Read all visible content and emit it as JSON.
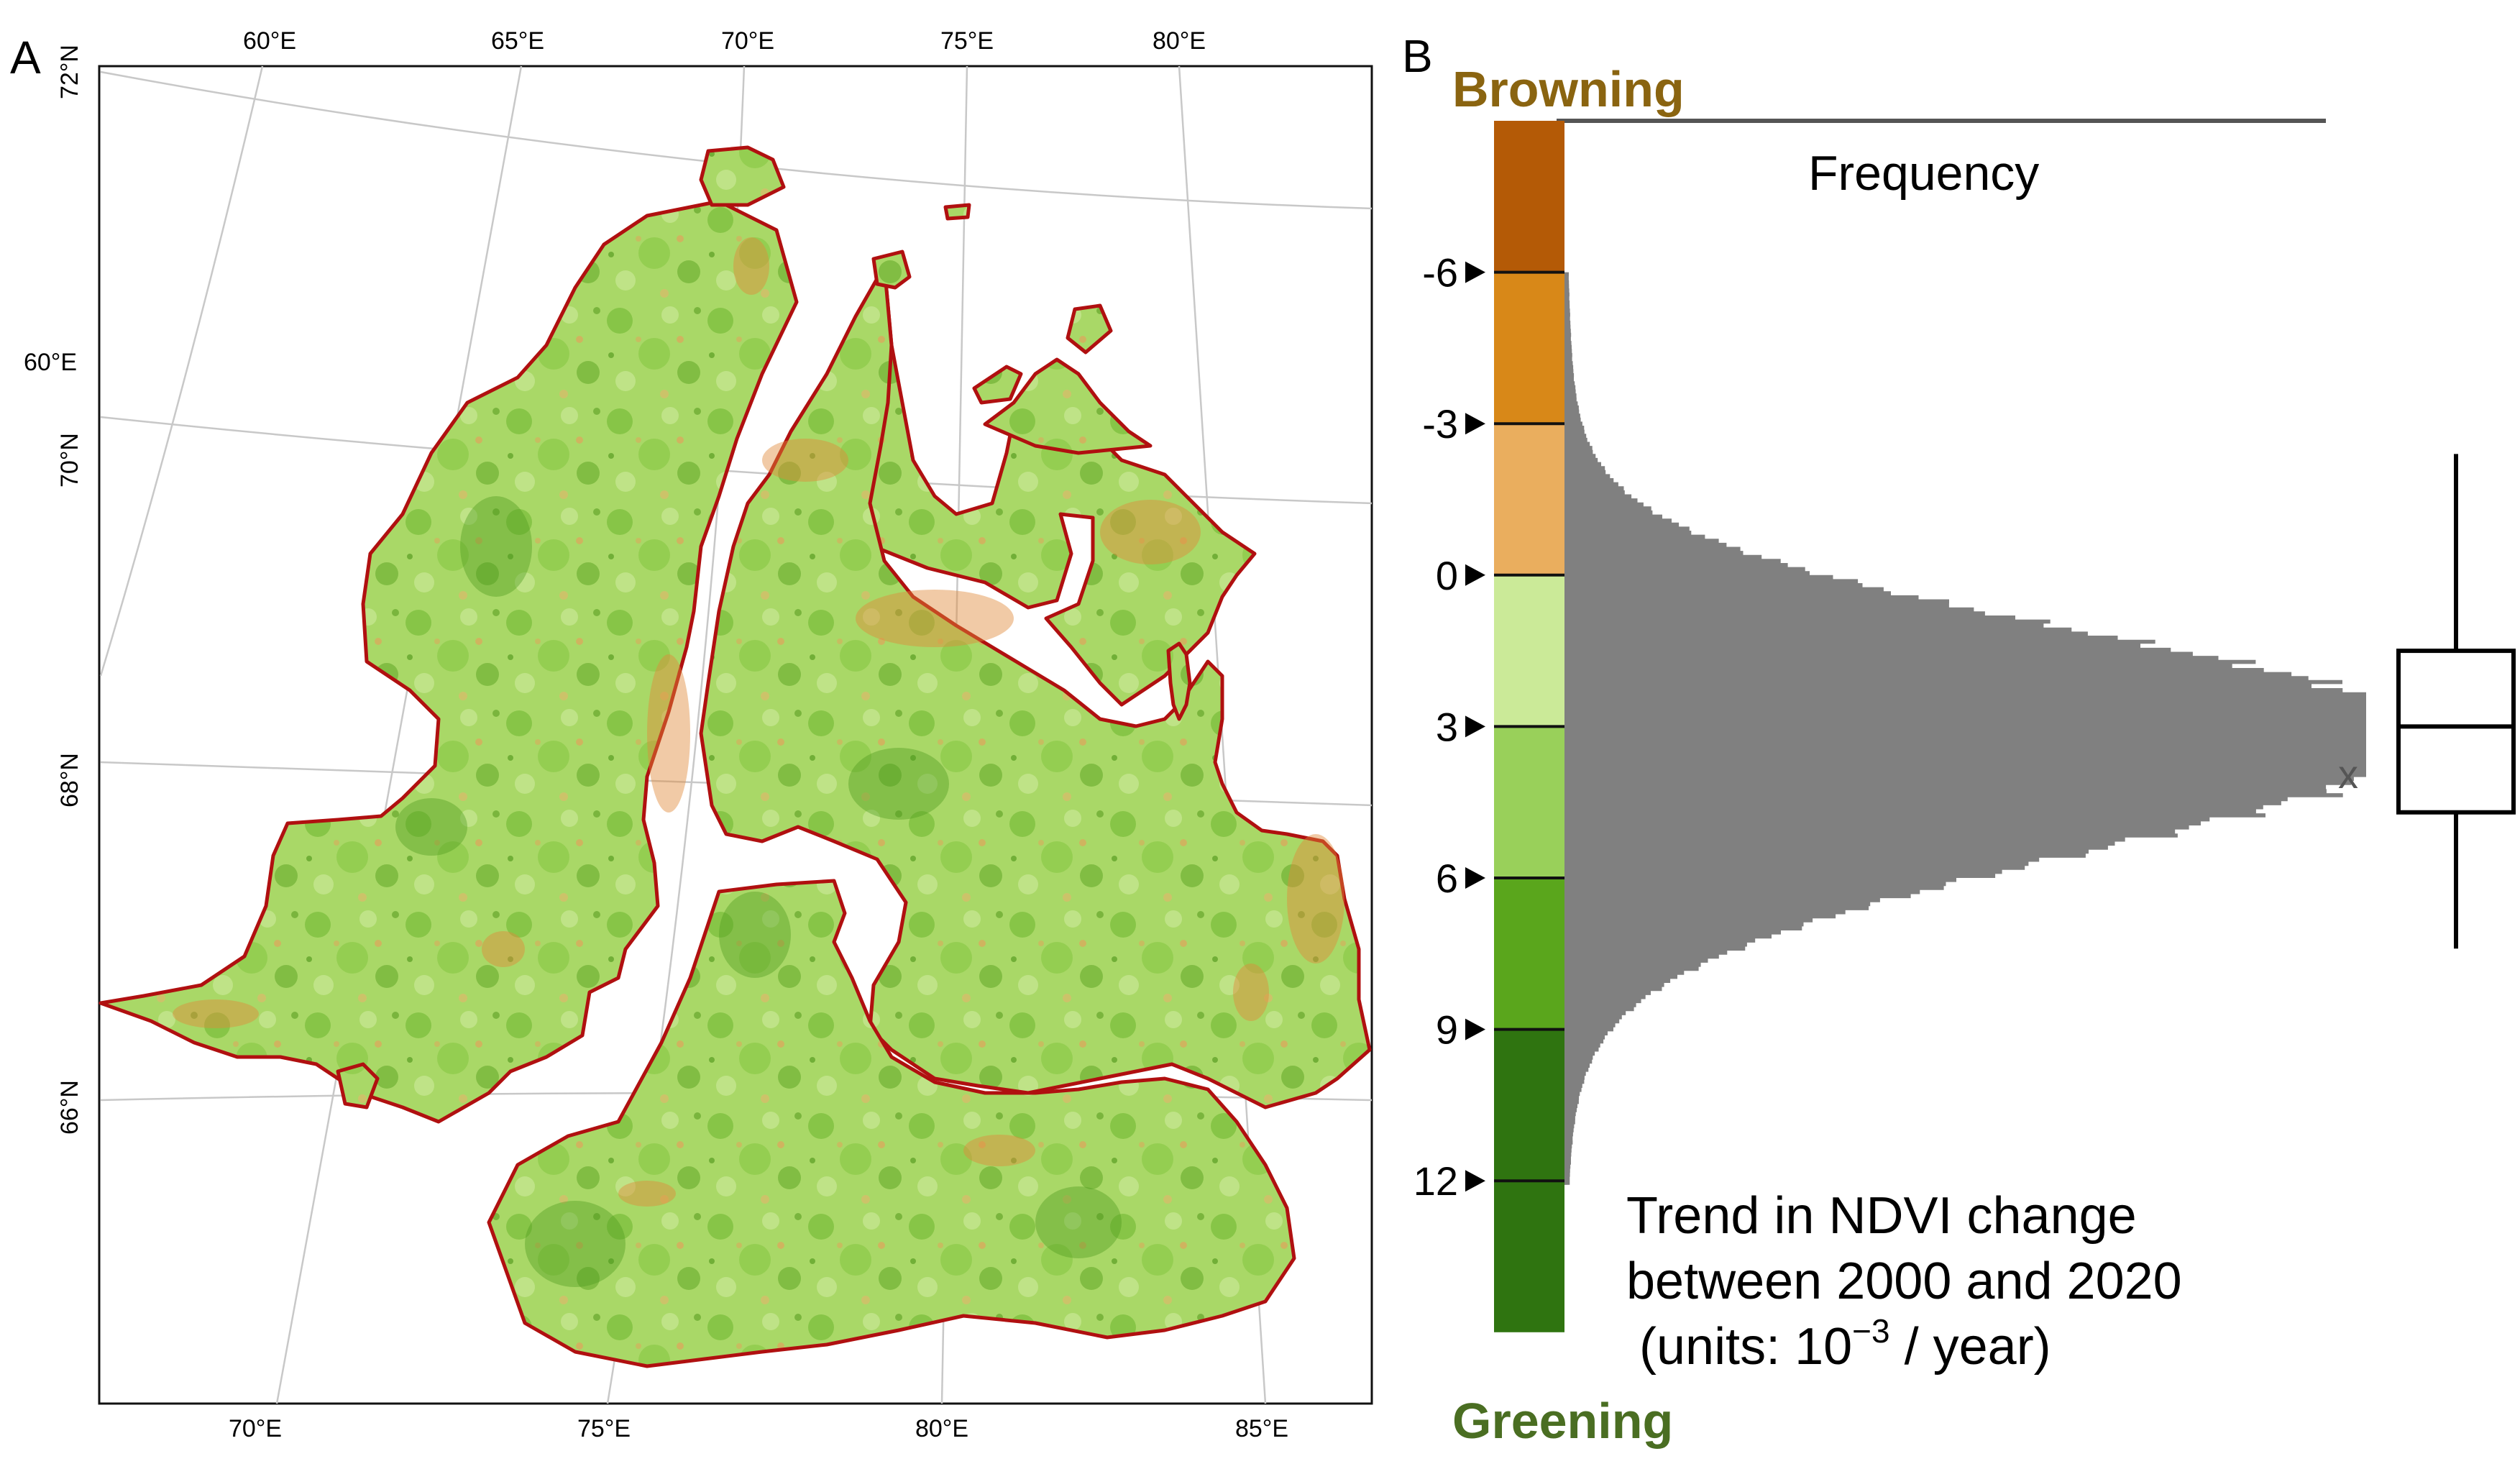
{
  "panel_a": {
    "label": "A",
    "top_lon_labels": [
      "60°E",
      "65°E",
      "70°E",
      "75°E",
      "80°E"
    ],
    "bottom_lon_labels": [
      "70°E",
      "75°E",
      "80°E",
      "85°E"
    ],
    "left_labels": [
      "72°N",
      "60°E",
      "70°N",
      "68°N",
      "66°N"
    ],
    "colors": {
      "boundary": "#b01010",
      "graticule": "#c8c8c8",
      "land_base": "#a9d867",
      "green_dark": "#4e9a1e",
      "green_mid": "#7cbf3c",
      "orange": "#e08a3a"
    }
  },
  "panel_b": {
    "label": "B",
    "top_label": "Browning",
    "bottom_label": "Greening",
    "axis_title": "Frequency",
    "ticks": [
      "-6",
      "-3",
      "0",
      "3",
      "6",
      "9",
      "12"
    ],
    "annotation_line1": "Trend in NDVI change",
    "annotation_line2": "between 2000 and 2020",
    "annotation_units": "(units: 10",
    "annotation_exp": "−3",
    "annotation_tail": " / year)",
    "mean_marker": "x",
    "browning_color": "#8a6410",
    "greening_color": "#4a6e22",
    "histogram_color": "#808080",
    "colorbar": [
      {
        "from": -9,
        "to": -6,
        "color": "#b45a06"
      },
      {
        "from": -6,
        "to": -3,
        "color": "#d88818"
      },
      {
        "from": -3,
        "to": 0,
        "color": "#eaae5e"
      },
      {
        "from": 0,
        "to": 3,
        "color": "#cbea98"
      },
      {
        "from": 3,
        "to": 6,
        "color": "#99d05a"
      },
      {
        "from": 6,
        "to": 9,
        "color": "#5aa61c"
      },
      {
        "from": 9,
        "to": 12,
        "color": "#2f7410"
      },
      {
        "from": 12,
        "to": 15,
        "color": "#2f7410"
      }
    ],
    "boxplot": {
      "whisker_low": -2.4,
      "q1": 1.5,
      "median": 3.0,
      "q3": 4.7,
      "whisker_high": 7.4
    }
  }
}
